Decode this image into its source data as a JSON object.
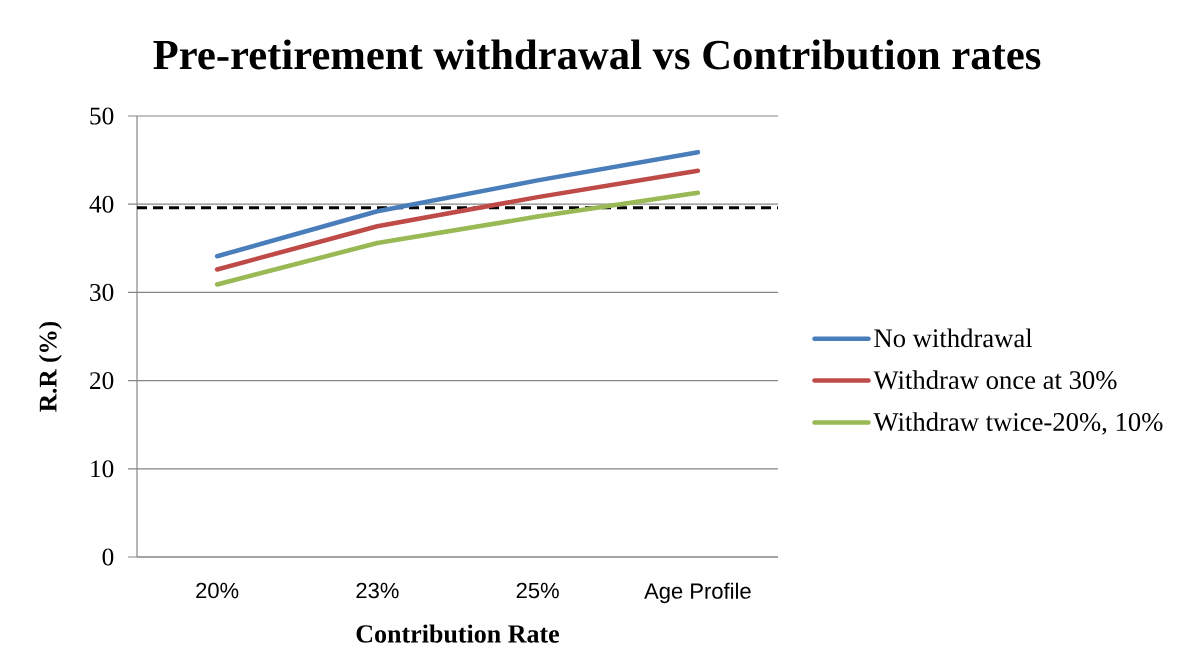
{
  "chart_data": {
    "type": "line",
    "title": "Pre-retirement withdrawal vs Contribution rates",
    "xlabel": "Contribution Rate",
    "ylabel": "R.R (%)",
    "categories": [
      "20%",
      "23%",
      "25%",
      "Age Profile"
    ],
    "series": [
      {
        "name": "No withdrawal",
        "color": "#4a7ebb",
        "values": [
          34.1,
          39.2,
          42.7,
          45.9
        ]
      },
      {
        "name": "Withdraw once at 30%",
        "color": "#be4b48",
        "values": [
          32.6,
          37.5,
          40.8,
          43.8
        ]
      },
      {
        "name": "Withdraw twice-20%, 10%",
        "color": "#98b954",
        "values": [
          30.9,
          35.6,
          38.6,
          41.3
        ]
      }
    ],
    "ylim": [
      0,
      50
    ],
    "yticks": [
      0,
      10,
      20,
      30,
      40,
      50
    ],
    "grid": "y",
    "legend": "right",
    "ref_lines": [
      {
        "axis": "y",
        "value": 39.6,
        "color": "#000000",
        "line_style": "dashed"
      }
    ]
  }
}
